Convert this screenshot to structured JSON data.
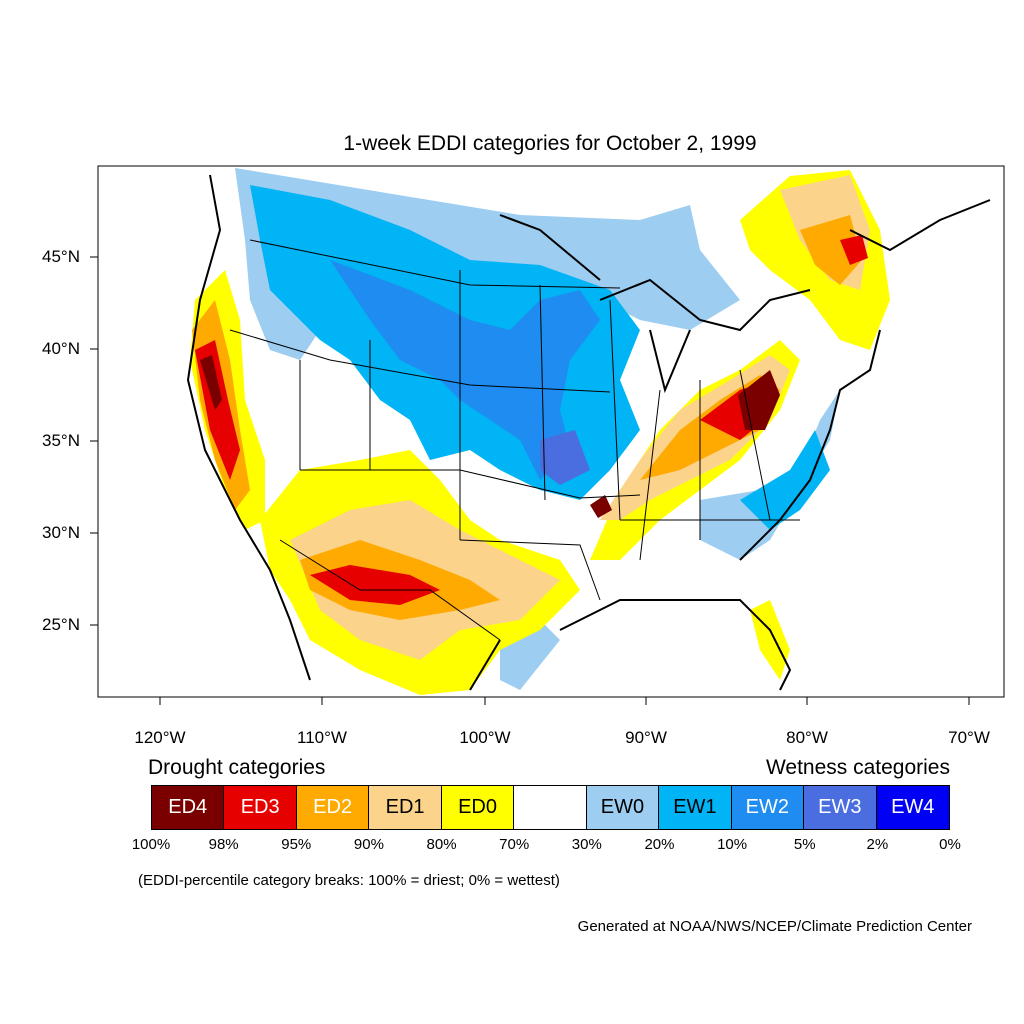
{
  "title": "1-week EDDI categories for October 2, 1999",
  "lat_labels": [
    "45°N",
    "40°N",
    "35°N",
    "30°N",
    "25°N"
  ],
  "lon_labels": [
    "120°W",
    "110°W",
    "100°W",
    "90°W",
    "80°W",
    "70°W"
  ],
  "legend": {
    "drought_heading": "Drought categories",
    "wetness_heading": "Wetness categories",
    "categories": [
      {
        "label": "ED4",
        "color": "#7a0000",
        "text_color": "#ffffff"
      },
      {
        "label": "ED3",
        "color": "#e60000",
        "text_color": "#ffffff"
      },
      {
        "label": "ED2",
        "color": "#ffaa00",
        "text_color": "#ffffff"
      },
      {
        "label": "ED1",
        "color": "#fcd38a",
        "text_color": "#000000"
      },
      {
        "label": "ED0",
        "color": "#ffff00",
        "text_color": "#000000"
      },
      {
        "label": "",
        "color": "#ffffff",
        "text_color": "#000000"
      },
      {
        "label": "EW0",
        "color": "#9dcdf0",
        "text_color": "#000000"
      },
      {
        "label": "EW1",
        "color": "#00b4f5",
        "text_color": "#000000"
      },
      {
        "label": "EW2",
        "color": "#1e8cf0",
        "text_color": "#ffffff"
      },
      {
        "label": "EW3",
        "color": "#4a6ee0",
        "text_color": "#ffffff"
      },
      {
        "label": "EW4",
        "color": "#0000f5",
        "text_color": "#ffffff"
      }
    ],
    "breaks": [
      "100%",
      "98%",
      "95%",
      "90%",
      "80%",
      "70%",
      "30%",
      "20%",
      "10%",
      "5%",
      "2%",
      "0%"
    ]
  },
  "note": "(EDDI-percentile category breaks: 100% = driest; 0% = wettest)",
  "credit": "Generated at NOAA/NWS/NCEP/Climate Prediction Center"
}
